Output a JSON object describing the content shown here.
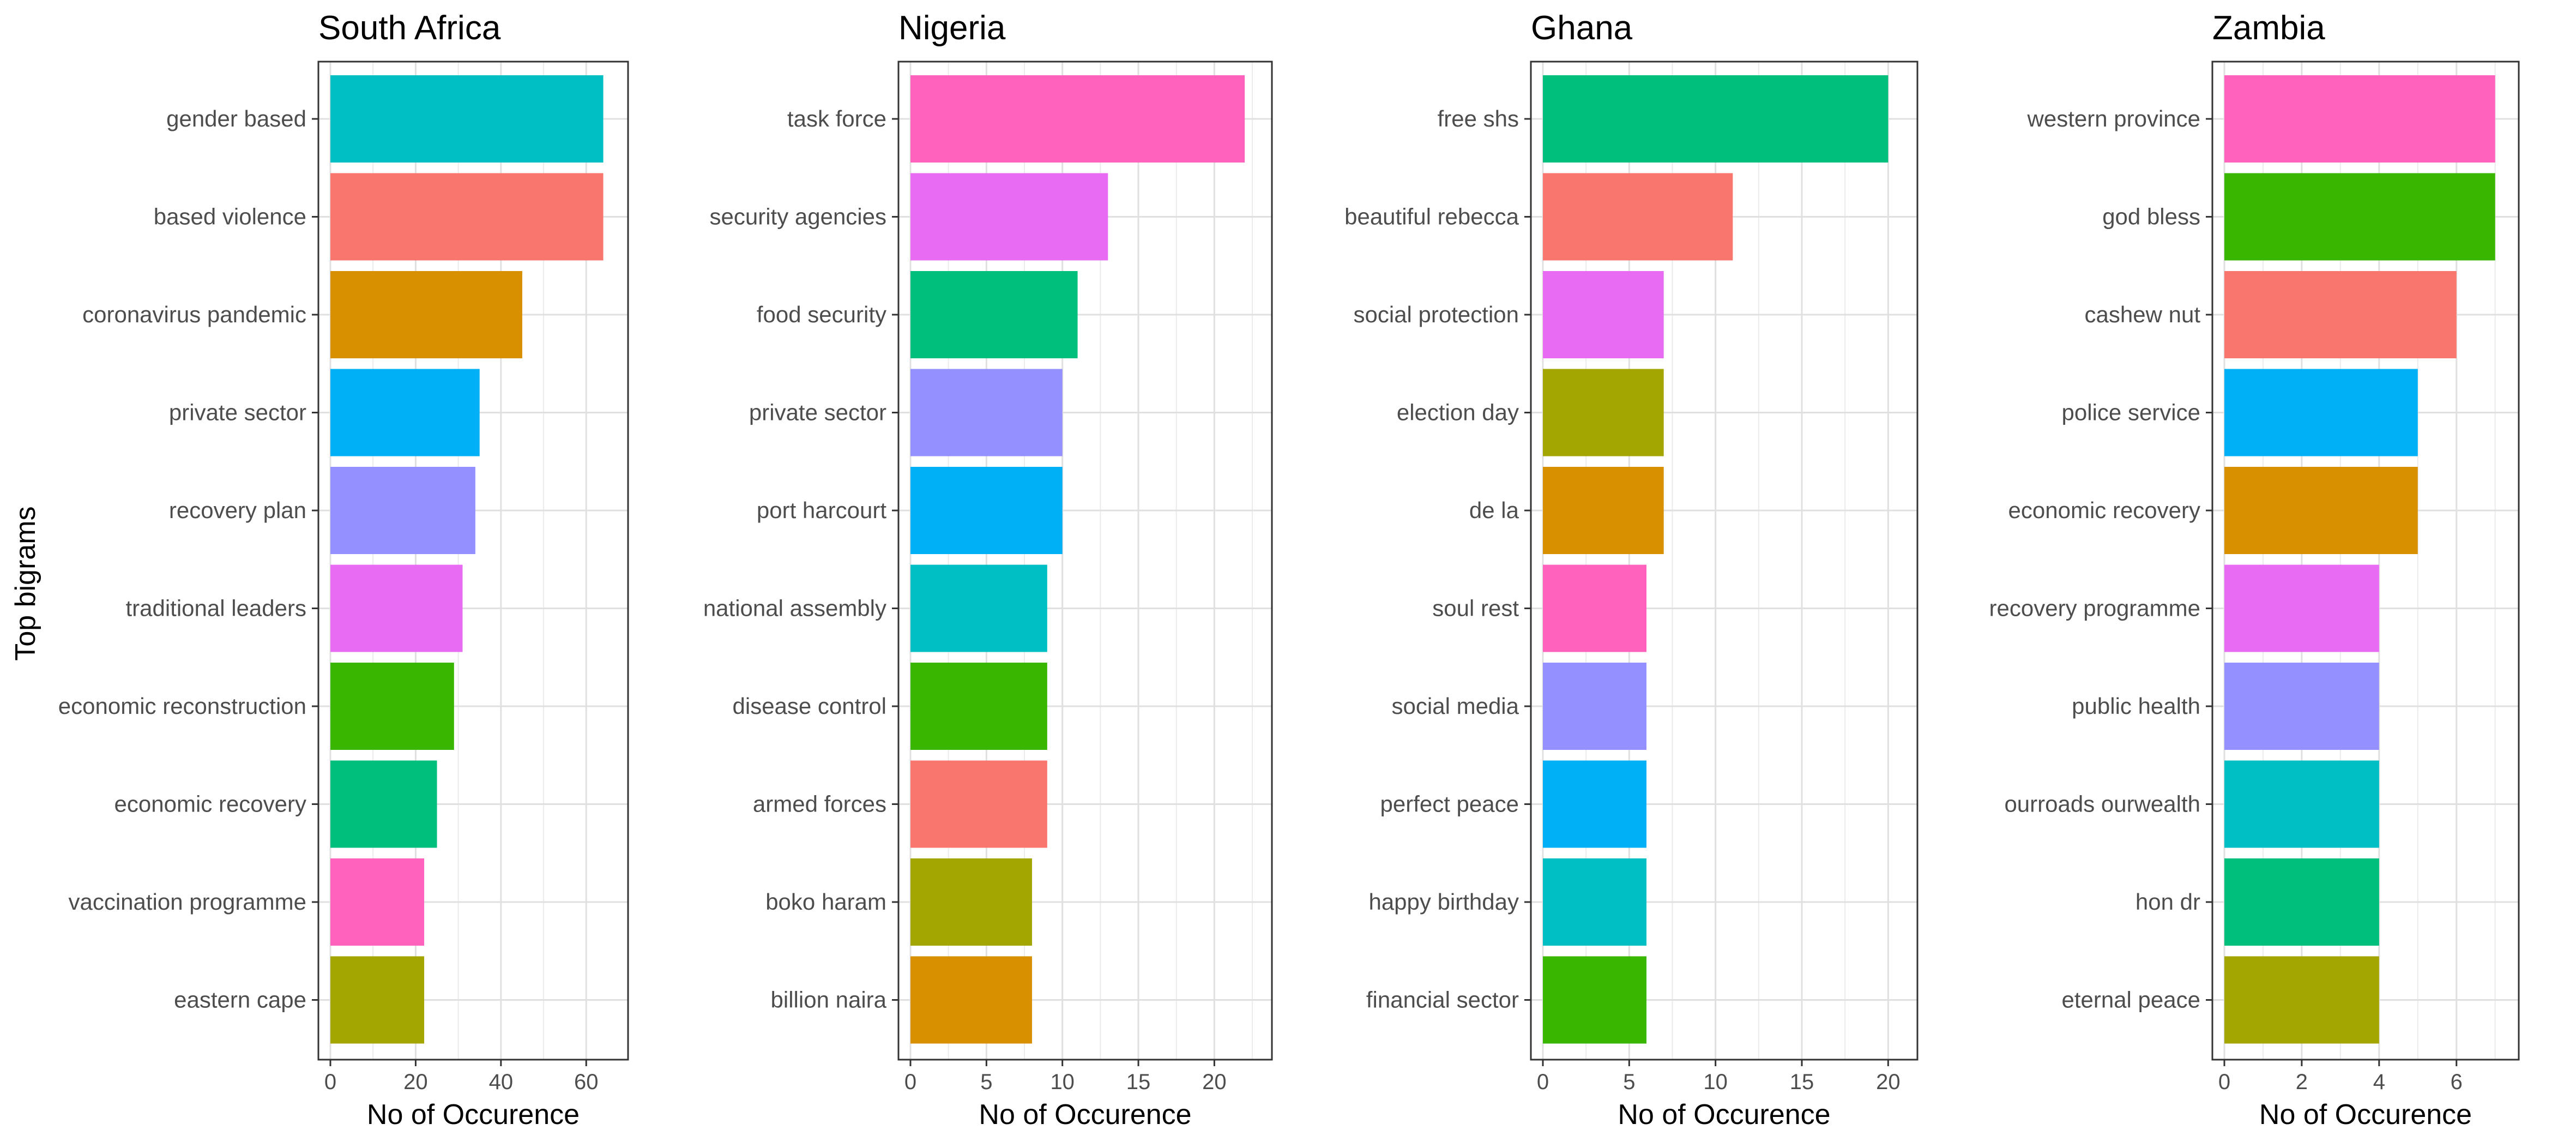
{
  "chart_data": {
    "type": "bar",
    "orientation": "horizontal",
    "shared_ylabel": "Top bigrams",
    "grid": true,
    "panels": [
      {
        "title": "South Africa",
        "xlabel": "No of Occurence",
        "xlim": [
          0,
          67
        ],
        "xticks": [
          0,
          20,
          40,
          60
        ],
        "categories": [
          "gender based",
          "based violence",
          "coronavirus pandemic",
          "private sector",
          "recovery plan",
          "traditional leaders",
          "economic reconstruction",
          "economic recovery",
          "vaccination programme",
          "eastern cape"
        ],
        "values": [
          64,
          64,
          45,
          35,
          34,
          31,
          29,
          25,
          22,
          22
        ],
        "colors": [
          "#00BFC4",
          "#F8766D",
          "#D89000",
          "#00B0F6",
          "#9590FF",
          "#E76BF3",
          "#39B600",
          "#00BF7D",
          "#FF62BC",
          "#A3A500"
        ]
      },
      {
        "title": "Nigeria",
        "xlabel": "No of Occurence",
        "xlim": [
          0,
          23
        ],
        "xticks": [
          0,
          5,
          10,
          15,
          20
        ],
        "categories": [
          "task force",
          "security agencies",
          "food security",
          "private sector",
          "port harcourt",
          "national assembly",
          "disease control",
          "armed forces",
          "boko haram",
          "billion naira"
        ],
        "values": [
          22,
          13,
          11,
          10,
          10,
          9,
          9,
          9,
          8,
          8
        ],
        "colors": [
          "#FF62BC",
          "#E76BF3",
          "#00BF7D",
          "#9590FF",
          "#00B0F6",
          "#00BFC4",
          "#39B600",
          "#F8766D",
          "#A3A500",
          "#D89000"
        ]
      },
      {
        "title": "Ghana",
        "xlabel": "No of Occurence",
        "xlim": [
          0,
          21
        ],
        "xticks": [
          0,
          5,
          10,
          15,
          20
        ],
        "categories": [
          "free shs",
          "beautiful rebecca",
          "social protection",
          "election day",
          "de la",
          "soul rest",
          "social media",
          "perfect peace",
          "happy birthday",
          "financial sector"
        ],
        "values": [
          20,
          11,
          7,
          7,
          7,
          6,
          6,
          6,
          6,
          6
        ],
        "colors": [
          "#00BF7D",
          "#F8766D",
          "#E76BF3",
          "#A3A500",
          "#D89000",
          "#FF62BC",
          "#9590FF",
          "#00B0F6",
          "#00BFC4",
          "#39B600"
        ]
      },
      {
        "title": "Zambia",
        "xlabel": "No of Occurence",
        "xlim": [
          0,
          7.3
        ],
        "xticks": [
          0,
          2,
          4,
          6
        ],
        "categories": [
          "western province",
          "god bless",
          "cashew nut",
          "police service",
          "economic recovery",
          "recovery programme",
          "public health",
          "ourroads ourwealth",
          "hon dr",
          "eternal peace"
        ],
        "values": [
          7,
          7,
          6,
          5,
          5,
          4,
          4,
          4,
          4,
          4
        ],
        "colors": [
          "#FF62BC",
          "#39B600",
          "#F8766D",
          "#00B0F6",
          "#D89000",
          "#E76BF3",
          "#9590FF",
          "#00BFC4",
          "#00BF7D",
          "#A3A500"
        ]
      }
    ]
  }
}
